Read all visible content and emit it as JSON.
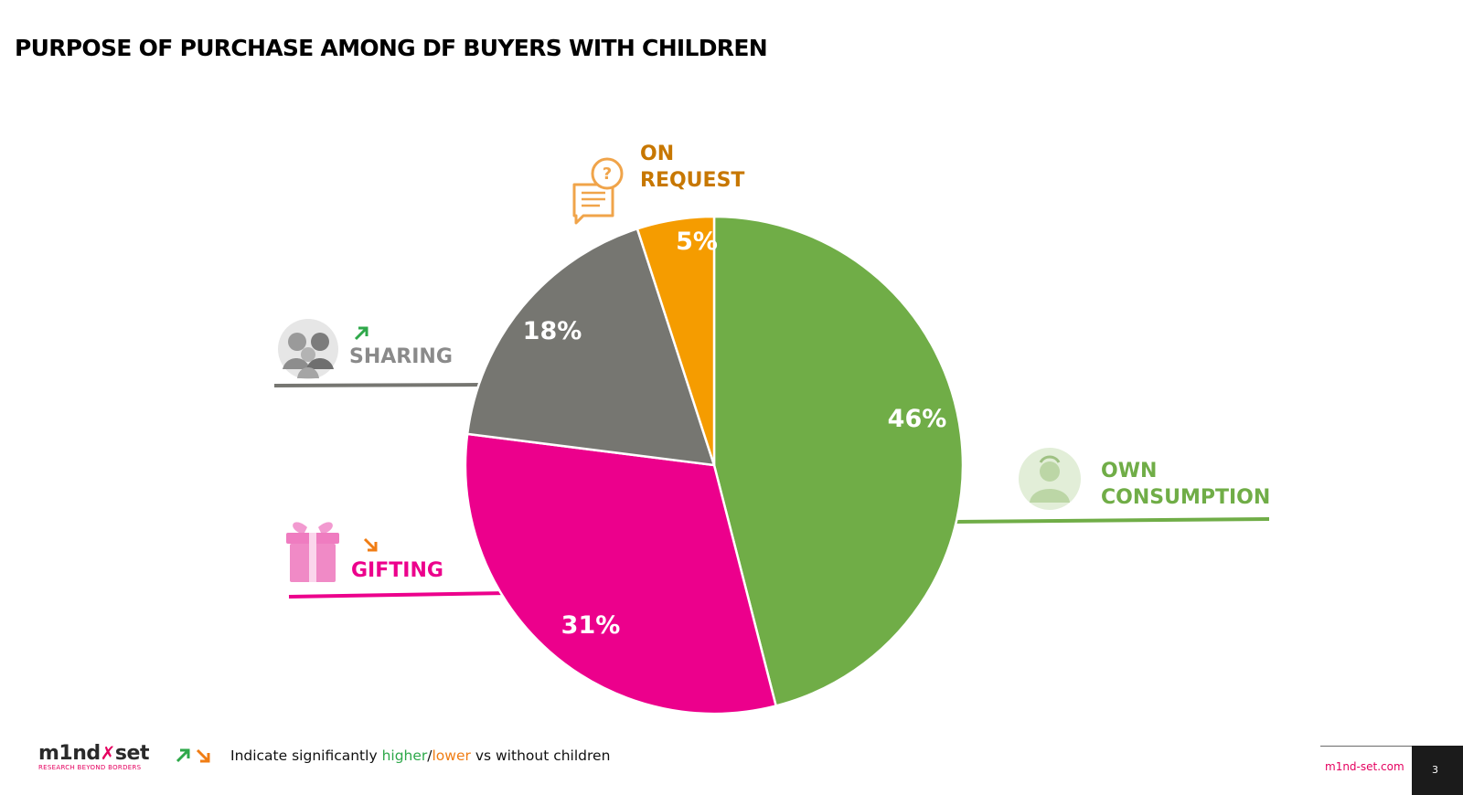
{
  "title": "PURPOSE OF PURCHASE AMONG DF BUYERS WITH CHILDREN",
  "chart_data": {
    "type": "pie",
    "categories": [
      "OWN CONSUMPTION",
      "GIFTING",
      "SHARING",
      "ON REQUEST"
    ],
    "values": [
      46,
      31,
      18,
      5
    ],
    "data_labels": [
      "46%",
      "31%",
      "18%",
      "5%"
    ],
    "colors": [
      "#70ad47",
      "#ec008c",
      "#767671",
      "#f59c00"
    ],
    "label_colors": [
      "#70ad47",
      "#ec008c",
      "#8a8a8a",
      "#c77700"
    ],
    "label_lines": [
      [
        "OWN",
        "CONSUMPTION"
      ],
      [
        "GIFTING"
      ],
      [
        "SHARING"
      ],
      [
        "ON",
        "REQUEST"
      ]
    ],
    "icons": [
      "person-icon",
      "gift-icon",
      "family-icon",
      "question-chat-icon"
    ],
    "significance": [
      null,
      "lower",
      "higher",
      null
    ],
    "start_angle_deg": 0,
    "direction": "clockwise"
  },
  "footer": {
    "logo_text": "m1nd set",
    "logo_tagline": "RESEARCH BEYOND BORDERS",
    "note_prefix": "Indicate significantly",
    "note_higher": "higher",
    "note_sep": "/",
    "note_lower": "lower",
    "note_suffix": "vs without children",
    "url": "m1nd-set.com",
    "page": "3"
  }
}
